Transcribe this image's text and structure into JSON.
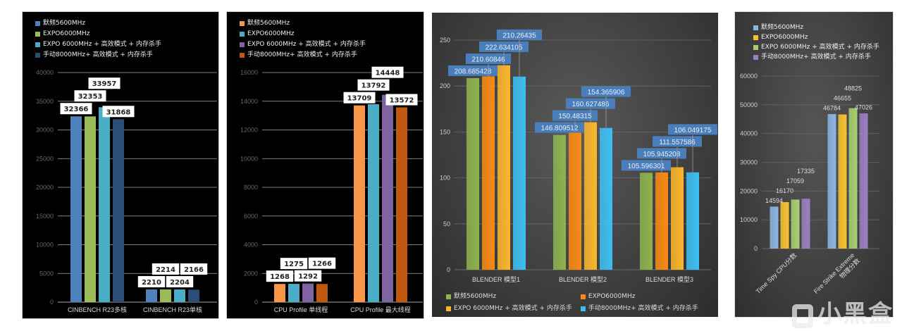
{
  "chart_data": [
    {
      "type": "bar",
      "title": "",
      "categories": [
        "CINBENCH R23多核",
        "CINBENCH R23单核"
      ],
      "ylim": [
        0,
        40000
      ],
      "yticks": [
        0,
        5000,
        10000,
        15000,
        20000,
        25000,
        30000,
        35000,
        40000
      ],
      "grid": true,
      "legend_position": "top-left",
      "series": [
        {
          "name": "默频5600MHz",
          "color": "#4f81bd",
          "values": [
            32366,
            2210
          ]
        },
        {
          "name": "EXPO6000MHz",
          "color": "#9bbb59",
          "values": [
            32353,
            2214
          ]
        },
        {
          "name": "EXPO 6000MHz + 高效模式 + 内存杀手",
          "color": "#4bacc6",
          "values": [
            33957,
            2204
          ]
        },
        {
          "name": "手动8000MHz+ 高效模式 + 内存杀手",
          "color": "#2c4d75",
          "values": [
            31868,
            2166
          ]
        }
      ]
    },
    {
      "type": "bar",
      "title": "",
      "categories": [
        "CPU Profile 单线程",
        "CPU Profile 最大线程"
      ],
      "ylim": [
        0,
        16000
      ],
      "yticks": [
        0,
        2000,
        4000,
        6000,
        8000,
        10000,
        12000,
        14000,
        16000
      ],
      "grid": true,
      "legend_position": "top-left",
      "series": [
        {
          "name": "默频5600MHz",
          "color": "#f79646",
          "values": [
            1268,
            13709
          ]
        },
        {
          "name": "EXPO6000MHz",
          "color": "#4bacc6",
          "values": [
            1275,
            13792
          ]
        },
        {
          "name": "EXPO 6000MHz + 高效模式 + 内存杀手",
          "color": "#8064a2",
          "values": [
            1292,
            14448
          ]
        },
        {
          "name": "手动8000MHz+ 高效模式 + 内存杀手",
          "color": "#c0590e",
          "values": [
            1266,
            13572
          ]
        }
      ]
    },
    {
      "type": "bar",
      "title": "",
      "categories": [
        "BLENDER  模型1",
        "BLENDER  模型2",
        "BLENDER  模型3"
      ],
      "ylim": [
        0,
        250
      ],
      "yticks": [
        0,
        50,
        100,
        150,
        200,
        250
      ],
      "grid": true,
      "legend_position": "bottom",
      "series": [
        {
          "name": "默频5600MHz",
          "color": "#8db34e",
          "values": [
            208.685428,
            146.809512,
            105.596301
          ]
        },
        {
          "name": "EXPO6000MHz",
          "color": "#f98a14",
          "values": [
            210.60846,
            150.48315,
            105.945208
          ]
        },
        {
          "name": "EXPO 6000MHz + 高效模式 + 内存杀手",
          "color": "#fbb62c",
          "values": [
            222.634105,
            160.627486,
            111.557586
          ]
        },
        {
          "name": "手动8000MHz+ 高效模式 + 内存杀手",
          "color": "#3dbff2",
          "values": [
            210.26435,
            154.365906,
            106.049175
          ]
        }
      ]
    },
    {
      "type": "bar",
      "title": "",
      "categories": [
        "Time Spy CPU分数",
        "Fire Strike Extreme 物理分数"
      ],
      "ylim": [
        0,
        60000
      ],
      "yticks": [
        0,
        10000,
        20000,
        30000,
        40000,
        50000,
        60000
      ],
      "grid": true,
      "legend_position": "top-left",
      "series": [
        {
          "name": "默频5600MHz",
          "color": "#8db4e2",
          "values": [
            14594,
            46784
          ]
        },
        {
          "name": "EXPO6000MHz",
          "color": "#f5c232",
          "values": [
            16170,
            46655
          ]
        },
        {
          "name": "EXPO 6000MHz + 高效模式 + 内存杀手",
          "color": "#a9cf72",
          "values": [
            17059,
            48825
          ]
        },
        {
          "name": "手动8000MHz+ 高效模式 + 内存杀手",
          "color": "#9b7fc1",
          "values": [
            17335,
            47026
          ]
        }
      ]
    }
  ],
  "watermark": "小黑盒"
}
